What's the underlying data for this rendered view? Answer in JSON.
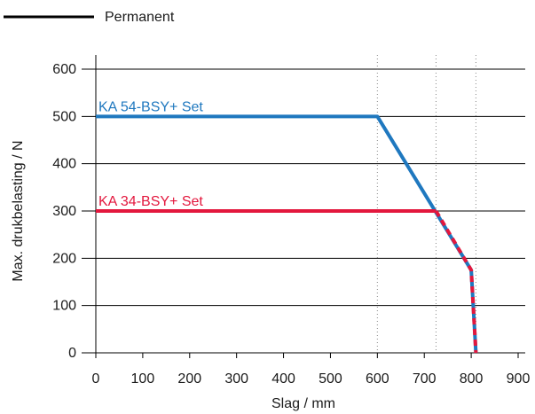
{
  "legend": {
    "label": "Permanent",
    "color": "#000000"
  },
  "chart_data": {
    "type": "line",
    "title": "",
    "xlabel": "Slag / mm",
    "ylabel": "Max. drukbelasting / N",
    "xlim": [
      0,
      900
    ],
    "ylim": [
      0,
      600
    ],
    "xticks": [
      0,
      100,
      200,
      300,
      400,
      500,
      600,
      700,
      800,
      900
    ],
    "yticks": [
      0,
      100,
      200,
      300,
      400,
      500,
      600
    ],
    "grid": "horizontal",
    "vertical_reference_lines": [
      600,
      725,
      810
    ],
    "series": [
      {
        "name": "KA 54-BSY+ Set",
        "color": "#1f78bf",
        "style": "solid",
        "x": [
          0,
          600,
          800,
          810
        ],
        "y": [
          500,
          500,
          175,
          0
        ]
      },
      {
        "name": "KA 34-BSY+ Set",
        "color": "#e3173d",
        "style": "solid-then-dashed",
        "x": [
          0,
          725,
          800,
          810
        ],
        "y": [
          300,
          300,
          175,
          0
        ]
      }
    ]
  }
}
